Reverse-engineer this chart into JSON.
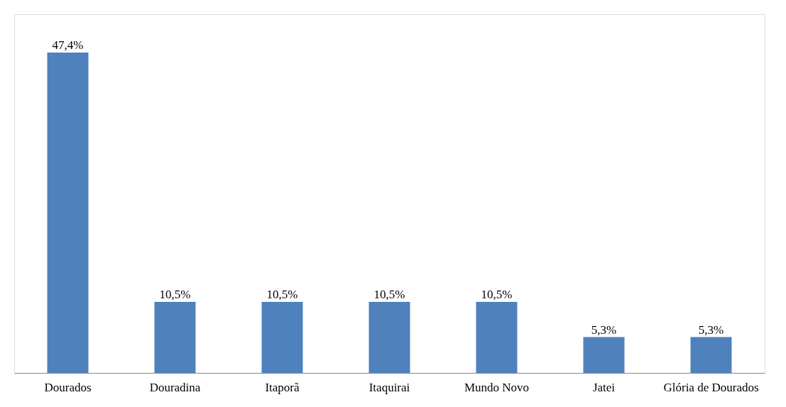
{
  "chart_data": {
    "type": "bar",
    "categories": [
      "Dourados",
      "Douradina",
      "Itaporã",
      "Itaquirai",
      "Mundo Novo",
      "Jatei",
      "Glória de Dourados"
    ],
    "values": [
      47.4,
      10.5,
      10.5,
      10.5,
      10.5,
      5.3,
      5.3
    ],
    "value_labels": [
      "47,4%",
      "10,5%",
      "10,5%",
      "10,5%",
      "10,5%",
      "5,3%",
      "5,3%"
    ],
    "color": "#4f81bd"
  }
}
